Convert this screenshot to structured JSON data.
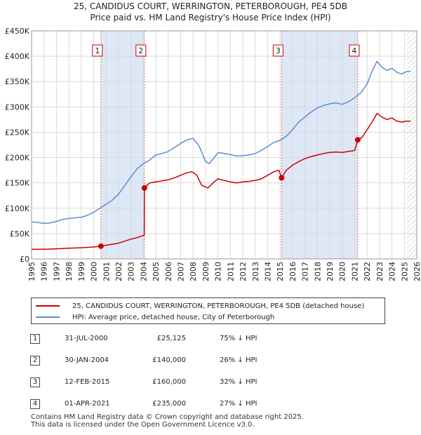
{
  "title": {
    "line1": "25, CANDIDUS COURT, WERRINGTON, PETERBOROUGH, PE4 5DB",
    "line2": "Price paid vs. HM Land Registry's House Price Index (HPI)"
  },
  "colors": {
    "property": "#cc0000",
    "hpi": "#5b8dd4",
    "shade": "#dde7f5",
    "marker_line": "#e07070",
    "grid": "#d9d9d9"
  },
  "chart_data": {
    "type": "line",
    "title": "25, CANDIDUS COURT, WERRINGTON, PETERBOROUGH, PE4 5DB — Price paid vs. HM Land Registry's House Price Index (HPI)",
    "xlim": [
      1995,
      2026
    ],
    "ylim": [
      0,
      450000
    ],
    "y_ticks": [
      0,
      50000,
      100000,
      150000,
      200000,
      250000,
      300000,
      350000,
      400000,
      450000
    ],
    "y_tick_labels": [
      "£0",
      "£50K",
      "£100K",
      "£150K",
      "£200K",
      "£250K",
      "£300K",
      "£350K",
      "£400K",
      "£450K"
    ],
    "x_ticks": [
      1995,
      1996,
      1997,
      1998,
      1999,
      2000,
      2001,
      2002,
      2003,
      2004,
      2005,
      2006,
      2007,
      2008,
      2009,
      2010,
      2011,
      2012,
      2013,
      2014,
      2015,
      2016,
      2017,
      2018,
      2019,
      2020,
      2021,
      2022,
      2023,
      2024,
      2025,
      2026
    ],
    "x_tick_labels": [
      "1995",
      "1996",
      "1997",
      "1998",
      "1999",
      "2000",
      "2001",
      "2002",
      "2003",
      "2004",
      "2005",
      "2006",
      "2007",
      "2008",
      "2009",
      "2010",
      "2011",
      "2012",
      "2013",
      "2014",
      "2015",
      "2016",
      "2017",
      "2018",
      "2019",
      "2020",
      "2021",
      "2022",
      "2023",
      "2024",
      "2025",
      "2026"
    ],
    "grid": true,
    "series": [
      {
        "name": "25, CANDIDUS COURT, WERRINGTON, PETERBOROUGH, PE4 5DB (detached house)",
        "color": "#cc0000",
        "x": [
          1995.0,
          1996.0,
          1997.0,
          1998.0,
          1999.0,
          2000.0,
          2000.58,
          2001.0,
          2001.5,
          2002.0,
          2002.5,
          2003.0,
          2003.5,
          2004.07,
          2004.08,
          2004.5,
          2005.0,
          2005.5,
          2006.0,
          2006.5,
          2007.0,
          2007.5,
          2007.9,
          2008.3,
          2008.7,
          2009.2,
          2009.6,
          2010.0,
          2010.5,
          2011.0,
          2011.5,
          2012.0,
          2012.5,
          2013.0,
          2013.5,
          2014.0,
          2014.5,
          2014.9,
          2015.12,
          2015.5,
          2016.0,
          2016.5,
          2017.0,
          2017.5,
          2018.0,
          2018.5,
          2019.0,
          2019.5,
          2020.0,
          2020.5,
          2021.0,
          2021.25,
          2021.6,
          2022.0,
          2022.4,
          2022.8,
          2023.2,
          2023.6,
          2024.0,
          2024.4,
          2024.8,
          2025.2,
          2025.5
        ],
        "values": [
          19000,
          19000,
          20000,
          21000,
          22000,
          23500,
          25125,
          27000,
          29000,
          31000,
          35000,
          39000,
          42000,
          47000,
          140000,
          150000,
          152000,
          154000,
          156000,
          160000,
          165000,
          170000,
          172000,
          165000,
          145000,
          140000,
          150000,
          158000,
          155000,
          152000,
          150000,
          152000,
          153000,
          155000,
          158000,
          165000,
          172000,
          175000,
          160000,
          175000,
          185000,
          192000,
          198000,
          202000,
          205000,
          208000,
          210000,
          211000,
          210000,
          212000,
          214000,
          235000,
          240000,
          255000,
          270000,
          287000,
          280000,
          275000,
          278000,
          272000,
          270000,
          272000,
          272000
        ]
      },
      {
        "name": "HPI: Average price, detached house, City of Peterborough",
        "color": "#5b8dd4",
        "x": [
          1995.0,
          1995.5,
          1996.0,
          1996.5,
          1997.0,
          1997.5,
          1998.0,
          1998.5,
          1999.0,
          1999.5,
          2000.0,
          2000.5,
          2001.0,
          2001.5,
          2002.0,
          2002.5,
          2003.0,
          2003.5,
          2004.0,
          2004.5,
          2005.0,
          2005.5,
          2006.0,
          2006.5,
          2007.0,
          2007.5,
          2008.0,
          2008.5,
          2009.0,
          2009.3,
          2009.7,
          2010.0,
          2010.5,
          2011.0,
          2011.5,
          2012.0,
          2012.5,
          2013.0,
          2013.5,
          2014.0,
          2014.5,
          2015.0,
          2015.5,
          2016.0,
          2016.5,
          2017.0,
          2017.5,
          2018.0,
          2018.5,
          2019.0,
          2019.5,
          2020.0,
          2020.5,
          2021.0,
          2021.5,
          2022.0,
          2022.4,
          2022.8,
          2023.2,
          2023.6,
          2024.0,
          2024.4,
          2024.8,
          2025.2,
          2025.5
        ],
        "values": [
          73000,
          72000,
          70000,
          71000,
          74000,
          78000,
          80000,
          81000,
          82000,
          86000,
          92000,
          100000,
          108000,
          116000,
          128000,
          145000,
          162000,
          178000,
          188000,
          195000,
          205000,
          208000,
          212000,
          220000,
          228000,
          235000,
          238000,
          222000,
          192000,
          188000,
          200000,
          210000,
          208000,
          206000,
          203000,
          204000,
          205000,
          208000,
          214000,
          222000,
          230000,
          234000,
          242000,
          255000,
          270000,
          280000,
          290000,
          298000,
          303000,
          306000,
          308000,
          305000,
          310000,
          318000,
          328000,
          345000,
          370000,
          390000,
          378000,
          372000,
          376000,
          368000,
          365000,
          370000,
          370000
        ]
      }
    ],
    "annotations": [
      {
        "label": "1",
        "x": 2000.58,
        "y": 25125
      },
      {
        "label": "2",
        "x": 2004.08,
        "y": 140000
      },
      {
        "label": "3",
        "x": 2015.12,
        "y": 160000
      },
      {
        "label": "4",
        "x": 2021.25,
        "y": 235000
      }
    ],
    "shaded_ranges": [
      [
        2000.58,
        2004.08
      ],
      [
        2015.12,
        2021.25
      ]
    ],
    "hatched_from": 2025.2
  },
  "legend": {
    "property_label": "25, CANDIDUS COURT, WERRINGTON, PETERBOROUGH, PE4 5DB (detached house)",
    "hpi_label": "HPI: Average price, detached house, City of Peterborough"
  },
  "sales": [
    {
      "num": "1",
      "date": "31-JUL-2000",
      "price": "£25,125",
      "hpi": "75% ↓ HPI"
    },
    {
      "num": "2",
      "date": "30-JAN-2004",
      "price": "£140,000",
      "hpi": "26% ↓ HPI"
    },
    {
      "num": "3",
      "date": "12-FEB-2015",
      "price": "£160,000",
      "hpi": "32% ↓ HPI"
    },
    {
      "num": "4",
      "date": "01-APR-2021",
      "price": "£235,000",
      "hpi": "27% ↓ HPI"
    }
  ],
  "footer": {
    "line1": "Contains HM Land Registry data © Crown copyright and database right 2025.",
    "line2": "This data is licensed under the Open Government Licence v3.0."
  }
}
